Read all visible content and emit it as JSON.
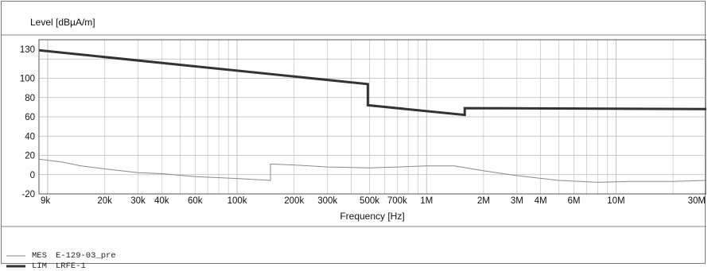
{
  "chart_data": {
    "type": "line",
    "ylabel": "Level [dBµA/m]",
    "xlabel": "Frequency [Hz]",
    "x_scale": "log",
    "xlim": [
      9000,
      30000000
    ],
    "ylim": [
      -20,
      140
    ],
    "grid": true,
    "y_ticks": [
      {
        "value": 130,
        "label": "130"
      },
      {
        "value": 100,
        "label": "100"
      },
      {
        "value": 80,
        "label": "80"
      },
      {
        "value": 60,
        "label": "60"
      },
      {
        "value": 40,
        "label": "40"
      },
      {
        "value": 20,
        "label": "20"
      },
      {
        "value": 0,
        "label": "0"
      },
      {
        "value": -20,
        "label": "-20"
      }
    ],
    "x_ticks": [
      {
        "value": 9000,
        "label": "9k"
      },
      {
        "value": 20000,
        "label": "20k"
      },
      {
        "value": 30000,
        "label": "30k"
      },
      {
        "value": 40000,
        "label": "40k"
      },
      {
        "value": 60000,
        "label": "60k"
      },
      {
        "value": 100000,
        "label": "100k"
      },
      {
        "value": 200000,
        "label": "200k"
      },
      {
        "value": 300000,
        "label": "300k"
      },
      {
        "value": 500000,
        "label": "500k"
      },
      {
        "value": 700000,
        "label": "700k"
      },
      {
        "value": 1000000,
        "label": "1M"
      },
      {
        "value": 2000000,
        "label": "2M"
      },
      {
        "value": 3000000,
        "label": "3M"
      },
      {
        "value": 4000000,
        "label": "4M"
      },
      {
        "value": 6000000,
        "label": "6M"
      },
      {
        "value": 10000000,
        "label": "10M"
      },
      {
        "value": 30000000,
        "label": "30M"
      }
    ],
    "series": [
      {
        "name": "LIM",
        "description": "LRFE-1",
        "color": "#333333",
        "points": [
          [
            9000,
            129
          ],
          [
            490000,
            94
          ],
          [
            490000,
            72
          ],
          [
            1590000,
            62
          ],
          [
            1590000,
            69
          ],
          [
            30000000,
            68
          ]
        ]
      },
      {
        "name": "MES",
        "description": "E-129-03_pre",
        "color": "#8a8a8a",
        "points": [
          [
            9000,
            16
          ],
          [
            12000,
            13
          ],
          [
            15000,
            9
          ],
          [
            20000,
            6
          ],
          [
            30000,
            2
          ],
          [
            40000,
            1
          ],
          [
            60000,
            -2
          ],
          [
            100000,
            -4
          ],
          [
            150000,
            -6
          ],
          [
            150000,
            11
          ],
          [
            200000,
            10
          ],
          [
            300000,
            8
          ],
          [
            500000,
            7
          ],
          [
            700000,
            8
          ],
          [
            1000000,
            9
          ],
          [
            1400000,
            9
          ],
          [
            2000000,
            4
          ],
          [
            3000000,
            -1
          ],
          [
            5000000,
            -6
          ],
          [
            8000000,
            -8
          ],
          [
            12000000,
            -7
          ],
          [
            20000000,
            -7
          ],
          [
            30000000,
            -6
          ]
        ]
      }
    ]
  },
  "legend": [
    {
      "name": "MES",
      "description": "E-129-03_pre",
      "color": "#8a8a8a"
    },
    {
      "name": "LIM",
      "description": "LRFE-1",
      "color": "#333333"
    }
  ]
}
